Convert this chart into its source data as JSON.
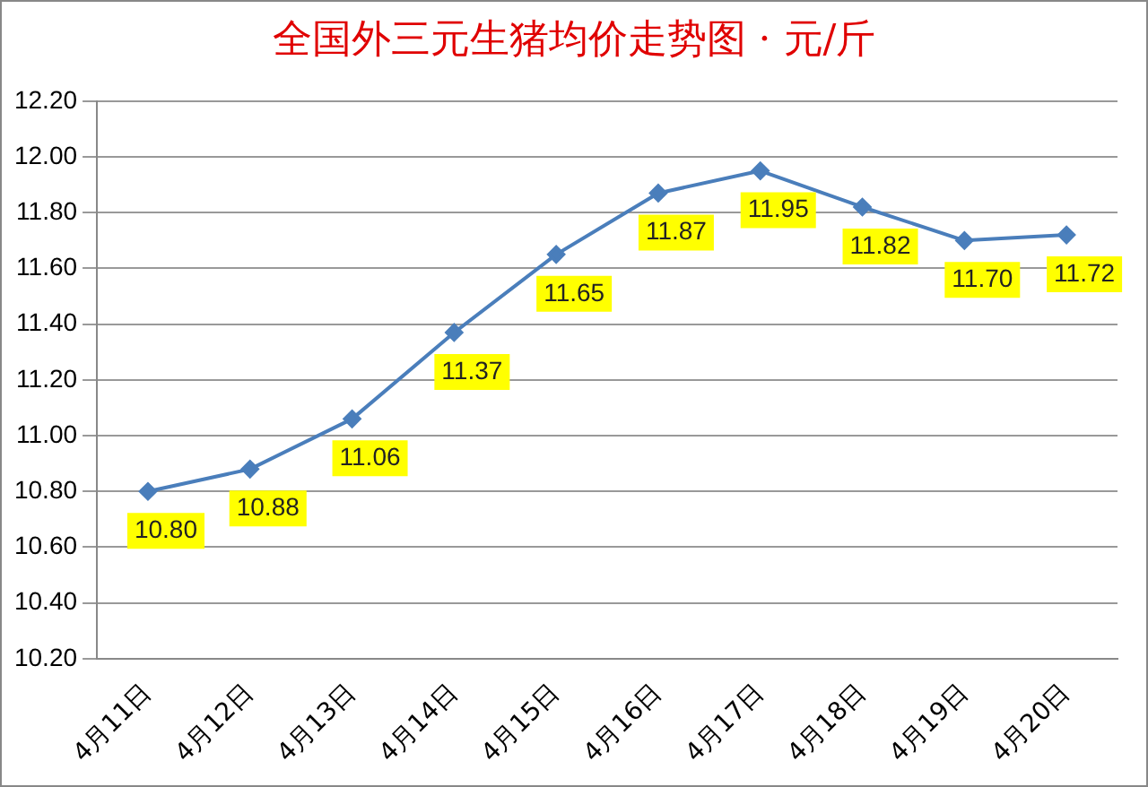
{
  "chart_data": {
    "type": "line",
    "title": "全国外三元生猪均价走势图 · 元/斤",
    "categories": [
      "4月11日",
      "4月12日",
      "4月13日",
      "4月14日",
      "4月15日",
      "4月16日",
      "4月17日",
      "4月18日",
      "4月19日",
      "4月20日"
    ],
    "values": [
      10.8,
      10.88,
      11.06,
      11.37,
      11.65,
      11.87,
      11.95,
      11.82,
      11.7,
      11.72
    ],
    "value_labels": [
      "10.80",
      "10.88",
      "11.06",
      "11.37",
      "11.65",
      "11.87",
      "11.95",
      "11.82",
      "11.70",
      "11.72"
    ],
    "color": "#4a7ebb",
    "marker": "diamond",
    "grid": "y",
    "legend": false,
    "ylim": [
      10.2,
      12.2
    ],
    "yticks": [
      {
        "value": 10.2,
        "label": "10.20"
      },
      {
        "value": 10.4,
        "label": "10.40"
      },
      {
        "value": 10.6,
        "label": "10.60"
      },
      {
        "value": 10.8,
        "label": "10.80"
      },
      {
        "value": 11.0,
        "label": "11.00"
      },
      {
        "value": 11.2,
        "label": "11.20"
      },
      {
        "value": 11.4,
        "label": "11.40"
      },
      {
        "value": 11.6,
        "label": "11.60"
      },
      {
        "value": 11.8,
        "label": "11.80"
      },
      {
        "value": 12.0,
        "label": "12.00"
      },
      {
        "value": 12.2,
        "label": "12.20"
      }
    ]
  }
}
